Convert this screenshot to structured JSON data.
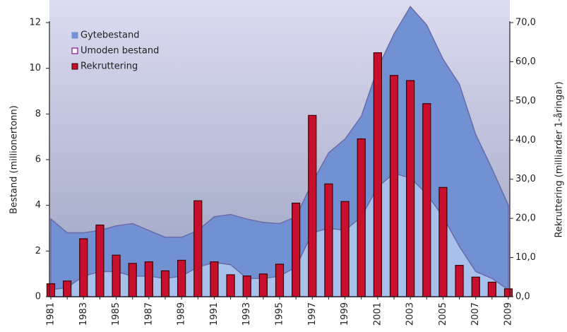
{
  "chart_data": {
    "type": "area-bar",
    "categories": [
      "1981",
      null,
      "1983",
      null,
      "1985",
      null,
      "1987",
      null,
      "1989",
      null,
      "1991",
      null,
      "1993",
      null,
      "1995",
      null,
      "1997",
      null,
      "1999",
      null,
      "2001",
      null,
      "2003",
      null,
      "2005",
      null,
      "2007",
      null,
      "2009"
    ],
    "ylabel": "Bestand (millionertonn)",
    "y2label": "Rekruttering (milliarder 1-åringar)",
    "ylim": [
      0,
      12
    ],
    "yticks": [
      0,
      2,
      4,
      6,
      8,
      10,
      12
    ],
    "y2lim": [
      0,
      70
    ],
    "y2ticks": [
      {
        "value": 0,
        "label": "0,0"
      },
      {
        "value": 10,
        "label": "10,0"
      },
      {
        "value": 20,
        "label": "20,0"
      },
      {
        "value": 30,
        "label": "30,0"
      },
      {
        "value": 40,
        "label": "40,0"
      },
      {
        "value": 50,
        "label": "50,0"
      },
      {
        "value": 60,
        "label": "60,0"
      },
      {
        "value": 70,
        "label": "70,0"
      }
    ],
    "series": [
      {
        "name": "Gytebestand",
        "color": "#7191d3",
        "kind": "area",
        "values": [
          3.4,
          2.8,
          2.8,
          2.9,
          3.1,
          3.2,
          2.9,
          2.6,
          2.6,
          2.9,
          3.5,
          3.6,
          3.4,
          3.25,
          3.2,
          3.5,
          5.0,
          6.3,
          6.9,
          7.9,
          10.0,
          11.5,
          12.7,
          11.9,
          10.4,
          9.3,
          7.1,
          5.6,
          4.0
        ]
      },
      {
        "name": "Umoden bestand",
        "color": "#a8c0ec",
        "kind": "area",
        "values": [
          0.3,
          0.4,
          0.9,
          1.1,
          1.1,
          0.9,
          0.9,
          0.8,
          0.9,
          1.3,
          1.5,
          1.4,
          0.8,
          0.8,
          0.9,
          1.3,
          2.8,
          3.0,
          2.9,
          3.5,
          4.8,
          5.4,
          5.2,
          4.5,
          3.5,
          2.2,
          1.1,
          0.8,
          0.3
        ]
      },
      {
        "name": "Rekruttering",
        "color": "#c8102e",
        "kind": "bar",
        "axis": "y2",
        "values": [
          3.3,
          4.0,
          14.8,
          18.3,
          10.6,
          8.5,
          8.9,
          6.6,
          9.3,
          24.5,
          8.9,
          5.6,
          5.3,
          5.8,
          8.3,
          23.9,
          46.3,
          28.8,
          24.3,
          40.3,
          62.3,
          56.5,
          55.2,
          49.3,
          27.9,
          8.0,
          5.0,
          3.7,
          2.0
        ]
      }
    ]
  }
}
